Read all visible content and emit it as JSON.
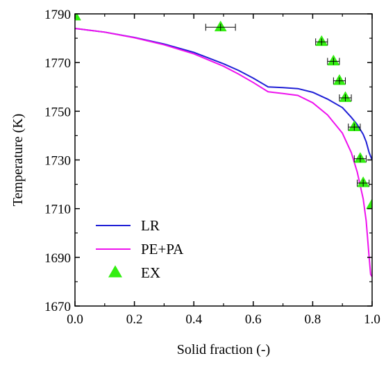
{
  "chart_data": {
    "type": "line",
    "title": "",
    "xlabel": "Solid fraction (-)",
    "ylabel": "Temperature (K)",
    "xlim": [
      0.0,
      1.0
    ],
    "ylim": [
      1670,
      1790
    ],
    "x_ticks": [
      "0.0",
      "0.2",
      "0.4",
      "0.6",
      "0.8",
      "1.0"
    ],
    "y_ticks": [
      "1670",
      "1690",
      "1710",
      "1730",
      "1750",
      "1770",
      "1790"
    ],
    "grid": false,
    "legend_position": "bottom-left",
    "series": [
      {
        "name": "LR",
        "type": "line",
        "color": "#1f1fd6",
        "points": [
          [
            0.0,
            1784
          ],
          [
            0.1,
            1782.5
          ],
          [
            0.2,
            1780.3
          ],
          [
            0.3,
            1777.6
          ],
          [
            0.4,
            1774.2
          ],
          [
            0.5,
            1769.5
          ],
          [
            0.55,
            1766.8
          ],
          [
            0.6,
            1763.6
          ],
          [
            0.65,
            1760
          ],
          [
            0.7,
            1759.7
          ],
          [
            0.75,
            1759.3
          ],
          [
            0.8,
            1757.8
          ],
          [
            0.85,
            1755
          ],
          [
            0.9,
            1751.5
          ],
          [
            0.93,
            1747.5
          ],
          [
            0.95,
            1744.5
          ],
          [
            0.97,
            1740.5
          ],
          [
            0.98,
            1737.5
          ],
          [
            0.99,
            1733
          ],
          [
            1.0,
            1730
          ]
        ]
      },
      {
        "name": "PE+PA",
        "type": "line",
        "color": "#ee11ee",
        "points": [
          [
            0.0,
            1784
          ],
          [
            0.1,
            1782.5
          ],
          [
            0.2,
            1780.2
          ],
          [
            0.3,
            1777.3
          ],
          [
            0.4,
            1773.6
          ],
          [
            0.5,
            1768.5
          ],
          [
            0.55,
            1765.3
          ],
          [
            0.6,
            1761.8
          ],
          [
            0.65,
            1758
          ],
          [
            0.7,
            1757.3
          ],
          [
            0.75,
            1756.5
          ],
          [
            0.8,
            1753.5
          ],
          [
            0.85,
            1748.5
          ],
          [
            0.9,
            1741
          ],
          [
            0.93,
            1733
          ],
          [
            0.95,
            1725
          ],
          [
            0.97,
            1714
          ],
          [
            0.98,
            1705
          ],
          [
            0.99,
            1690
          ],
          [
            0.995,
            1683
          ],
          [
            1.0,
            1682
          ]
        ]
      },
      {
        "name": "EX",
        "type": "scatter",
        "color": "#33ee11",
        "marker": "triangle",
        "points": [
          {
            "x": 0.0,
            "y": 1789,
            "xerr": 0.0
          },
          {
            "x": 0.49,
            "y": 1784.5,
            "xerr": 0.05
          },
          {
            "x": 0.83,
            "y": 1778.5,
            "xerr": 0.02
          },
          {
            "x": 0.87,
            "y": 1770.5,
            "xerr": 0.02
          },
          {
            "x": 0.89,
            "y": 1762.5,
            "xerr": 0.02
          },
          {
            "x": 0.91,
            "y": 1755.5,
            "xerr": 0.02
          },
          {
            "x": 0.94,
            "y": 1743.5,
            "xerr": 0.02
          },
          {
            "x": 0.96,
            "y": 1730.5,
            "xerr": 0.02
          },
          {
            "x": 0.97,
            "y": 1720.5,
            "xerr": 0.02
          },
          {
            "x": 1.0,
            "y": 1711.5,
            "xerr": 0.0
          }
        ]
      }
    ]
  }
}
